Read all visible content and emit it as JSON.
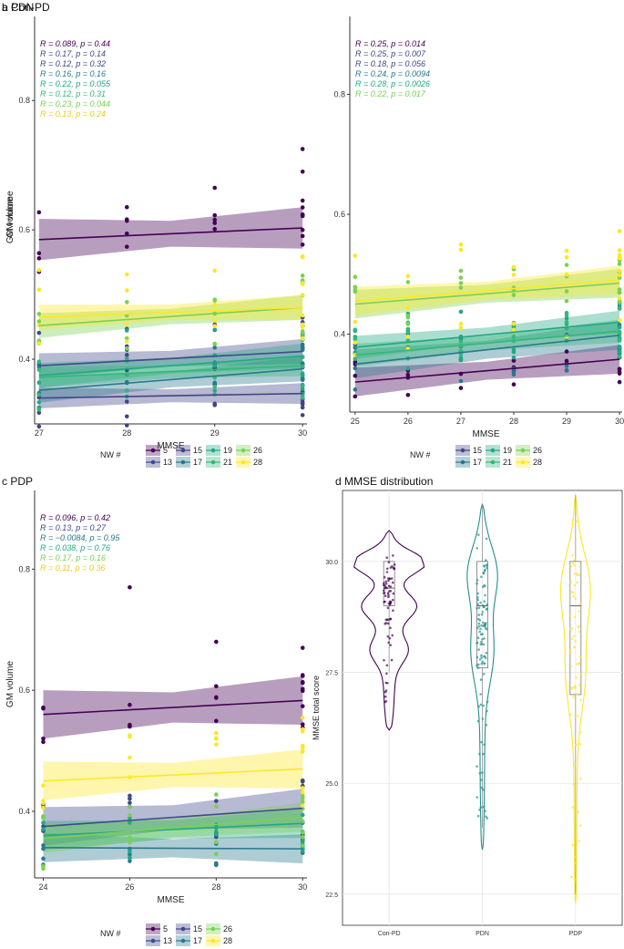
{
  "palette": {
    "5": "#440154",
    "13": "#3f4a8a",
    "15": "#414487",
    "17": "#2a788e",
    "19": "#22a884",
    "21": "#35b779",
    "26": "#7ad151",
    "28": "#fde725"
  },
  "chart_data": [
    {
      "type": "scatter",
      "id": "a",
      "title": "a Con-PD",
      "xlabel": "MMSE",
      "ylabel": "GM volume",
      "xlim": [
        26.95,
        30.05
      ],
      "ylim": [
        0.3,
        0.93
      ],
      "xticks": [
        27,
        28,
        29,
        30
      ],
      "xticklabels": [
        "27",
        "28",
        "29",
        "30"
      ],
      "yticks": [
        0.4,
        0.6,
        0.8
      ],
      "yticklabels": [
        "0.4",
        "0.6",
        "0.8"
      ],
      "legend_title": "NW #",
      "legend_rows": [
        [
          "5",
          "15",
          "19",
          "26"
        ],
        [
          "13",
          "17",
          "21",
          "28"
        ]
      ],
      "stats": [
        {
          "nw": "5",
          "text": "R = 0.089, p = 0.44"
        },
        {
          "nw": "13",
          "text": "R = 0.17, p = 0.14"
        },
        {
          "nw": "15",
          "text": "R = 0.12, p = 0.32"
        },
        {
          "nw": "17",
          "text": "R = 0.16, p = 0.16"
        },
        {
          "nw": "19",
          "text": "R = 0.22, p = 0.055"
        },
        {
          "nw": "21",
          "text": "R = 0.12, p = 0.31"
        },
        {
          "nw": "26",
          "text": "R = 0.23, p = 0.044"
        },
        {
          "nw": "28",
          "text": "R = 0.13, p = 0.24"
        }
      ],
      "series": [
        {
          "nw": "5",
          "y0": 0.585,
          "y1": 0.603,
          "se": 0.02,
          "spread": 0.05,
          "top": [
            0.635,
            0.665,
            0.69,
            0.725
          ]
        },
        {
          "nw": "13",
          "y0": 0.39,
          "y1": 0.412,
          "se": 0.012,
          "spread": 0.06
        },
        {
          "nw": "15",
          "y0": 0.34,
          "y1": 0.347,
          "se": 0.01,
          "spread": 0.05
        },
        {
          "nw": "17",
          "y0": 0.352,
          "y1": 0.385,
          "se": 0.012,
          "spread": 0.05
        },
        {
          "nw": "19",
          "y0": 0.375,
          "y1": 0.405,
          "se": 0.012,
          "spread": 0.06
        },
        {
          "nw": "21",
          "y0": 0.372,
          "y1": 0.39,
          "se": 0.01,
          "spread": 0.05
        },
        {
          "nw": "26",
          "y0": 0.452,
          "y1": 0.48,
          "se": 0.012,
          "spread": 0.05
        },
        {
          "nw": "28",
          "y0": 0.465,
          "y1": 0.48,
          "se": 0.012,
          "spread": 0.08
        }
      ]
    },
    {
      "type": "scatter",
      "id": "b",
      "title": "b PDN",
      "xlabel": "MMSE",
      "ylabel": "GM volume",
      "xlim": [
        24.9,
        30.05
      ],
      "ylim": [
        0.27,
        0.93
      ],
      "xticks": [
        25,
        26,
        27,
        28,
        29,
        30
      ],
      "xticklabels": [
        "25",
        "26",
        "27",
        "28",
        "29",
        "30"
      ],
      "yticks": [
        0.4,
        0.6,
        0.8
      ],
      "yticklabels": [
        "0.4",
        "0.6",
        "0.8"
      ],
      "legend_title": "NW #",
      "legend_rows": [
        [
          "15",
          "19",
          "26"
        ],
        [
          "17",
          "21",
          "28"
        ]
      ],
      "stats": [
        {
          "nw": "5",
          "text": "R = 0.25, p = 0.014"
        },
        {
          "nw": "13",
          "text": "R = 0.25, p = 0.007"
        },
        {
          "nw": "15",
          "text": "R = 0.18, p = 0.056"
        },
        {
          "nw": "17",
          "text": "R = 0.24, p = 0.0094"
        },
        {
          "nw": "19",
          "text": "R = 0.28, p = 0.0026"
        },
        {
          "nw": "26",
          "text": "R = 0.22, p = 0.017"
        }
      ],
      "series": [
        {
          "nw": "5",
          "y0": 0.32,
          "y1": 0.358,
          "se": 0.015,
          "spread": 0.04
        },
        {
          "nw": "17",
          "y0": 0.35,
          "y1": 0.398,
          "se": 0.015,
          "spread": 0.05
        },
        {
          "nw": "19",
          "y0": 0.378,
          "y1": 0.42,
          "se": 0.012,
          "spread": 0.05
        },
        {
          "nw": "21",
          "y0": 0.365,
          "y1": 0.405,
          "se": 0.012,
          "spread": 0.05
        },
        {
          "nw": "26",
          "y0": 0.45,
          "y1": 0.485,
          "se": 0.015,
          "spread": 0.05
        },
        {
          "nw": "28",
          "y0": 0.455,
          "y1": 0.49,
          "se": 0.015,
          "spread": 0.09
        }
      ]
    },
    {
      "type": "scatter",
      "id": "c",
      "title": "c PDP",
      "xlabel": "MMSE",
      "ylabel": "GM volume",
      "xlim": [
        23.8,
        30.1
      ],
      "ylim": [
        0.29,
        0.93
      ],
      "xticks": [
        24,
        26,
        28,
        30
      ],
      "xticklabels": [
        "24",
        "26",
        "28",
        "30"
      ],
      "yticks": [
        0.4,
        0.6,
        0.8
      ],
      "yticklabels": [
        "0.4",
        "0.6",
        "0.8"
      ],
      "legend_title": "NW #",
      "legend_rows": [
        [
          "5",
          "15",
          "26"
        ],
        [
          "13",
          "17",
          "28"
        ]
      ],
      "stats": [
        {
          "nw": "5",
          "text": "R = 0.096, p = 0.42"
        },
        {
          "nw": "13",
          "text": "R = 0.13, p = 0.27"
        },
        {
          "nw": "17",
          "text": "R = −0.0084, p = 0.95"
        },
        {
          "nw": "19",
          "text": "R = 0.038, p = 0.76"
        },
        {
          "nw": "26",
          "text": "R = 0.17, p = 0.16"
        },
        {
          "nw": "28",
          "text": "R = 0.11, p = 0.36"
        }
      ],
      "series": [
        {
          "nw": "5",
          "y0": 0.56,
          "y1": 0.583,
          "se": 0.025,
          "spread": 0.05,
          "top": [
            0.77,
            0.68,
            0.67
          ]
        },
        {
          "nw": "13",
          "y0": 0.375,
          "y1": 0.405,
          "se": 0.02,
          "spread": 0.05
        },
        {
          "nw": "17",
          "y0": 0.34,
          "y1": 0.338,
          "se": 0.015,
          "spread": 0.03
        },
        {
          "nw": "19",
          "y0": 0.36,
          "y1": 0.38,
          "se": 0.015,
          "spread": 0.05
        },
        {
          "nw": "26",
          "y0": 0.355,
          "y1": 0.39,
          "se": 0.015,
          "spread": 0.05
        },
        {
          "nw": "28",
          "y0": 0.45,
          "y1": 0.47,
          "se": 0.02,
          "spread": 0.09
        }
      ]
    },
    {
      "type": "violin",
      "id": "d",
      "title": "d MMSE distribution",
      "ylabel": "MMSE total score",
      "categories": [
        "Con-PD",
        "PDN",
        "PDP"
      ],
      "colors": [
        "#440154",
        "#21918c",
        "#fde725"
      ],
      "ylim": [
        21.8,
        31.6
      ],
      "yticks": [
        22.5,
        25.0,
        27.5,
        30.0
      ],
      "yticklabels": [
        "22.5",
        "25.0",
        "27.5",
        "30.0"
      ],
      "groups": [
        {
          "name": "Con-PD",
          "min": 26.2,
          "max": 30.7,
          "q1": 29.0,
          "median": 29.4,
          "q3": 30.0,
          "n": 75
        },
        {
          "name": "PDN",
          "min": 23.5,
          "max": 31.3,
          "q1": 27.6,
          "median": 29.0,
          "q3": 30.0,
          "n": 110
        },
        {
          "name": "PDP",
          "min": 22.3,
          "max": 31.5,
          "q1": 27.0,
          "median": 29.0,
          "q3": 30.0,
          "n": 70
        }
      ]
    }
  ]
}
